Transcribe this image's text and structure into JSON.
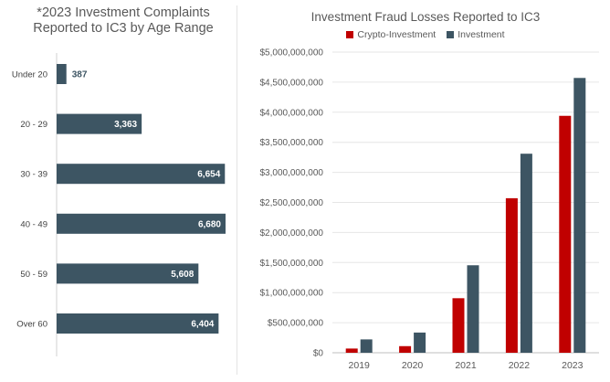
{
  "chart_data": [
    {
      "type": "bar",
      "orientation": "horizontal",
      "title_lines": [
        "*2023 Investment Complaints",
        "Reported to IC3 by Age Range"
      ],
      "categories": [
        "Under 20",
        "20 - 29",
        "30 - 39",
        "40 - 49",
        "50 - 59",
        "Over 60"
      ],
      "values": [
        387,
        3363,
        6654,
        6680,
        5608,
        6404
      ],
      "value_labels": [
        "387",
        "3,363",
        "6,654",
        "6,680",
        "5,608",
        "6,404"
      ],
      "xlim": [
        0,
        6680
      ],
      "bar_color": "#3d5563",
      "grid": false,
      "legend": "none"
    },
    {
      "type": "bar",
      "title": "Investment Fraud Losses Reported to IC3",
      "categories": [
        "2019",
        "2020",
        "2021",
        "2022",
        "2023"
      ],
      "series": [
        {
          "name": "Crypto-Investment",
          "color": "#c00000",
          "values": [
            70000000,
            110000000,
            907000000,
            2570000000,
            3940000000
          ]
        },
        {
          "name": "Investment",
          "color": "#3d5563",
          "values": [
            222000000,
            336000000,
            1455000000,
            3310000000,
            4570000000
          ]
        }
      ],
      "ylim": [
        0,
        5000000000
      ],
      "yticks": [
        0,
        500000000,
        1000000000,
        1500000000,
        2000000000,
        2500000000,
        3000000000,
        3500000000,
        4000000000,
        4500000000,
        5000000000
      ],
      "ytick_labels": [
        "$0",
        "$500,000,000",
        "$1,000,000,000",
        "$1,500,000,000",
        "$2,000,000,000",
        "$2,500,000,000",
        "$3,000,000,000",
        "$3,500,000,000",
        "$4,000,000,000",
        "$4,500,000,000",
        "$5,000,000,000"
      ],
      "grid": true,
      "legend": "top-center"
    }
  ]
}
